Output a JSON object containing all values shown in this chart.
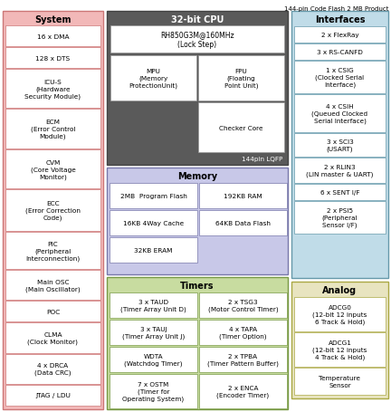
{
  "title": "144-pin Code Flash 2 MB Product",
  "bg_color": "#ffffff",
  "system_color": "#f2b8b8",
  "cpu_color": "#5a5a5a",
  "memory_color": "#c8c8e8",
  "timers_color": "#c8dca0",
  "interfaces_color": "#c0dce8",
  "analog_color": "#e8e4c0",
  "system_items": [
    "16 x DMA",
    "128 x DTS",
    "ICU-S\n(Hardware\nSecurity Module)",
    "ECM\n(Error Control\nModule)",
    "CVM\n(Core Voltage\nMonitor)",
    "ECC\n(Error Correction\nCode)",
    "PIC\n(Peripheral\nInterconnection)",
    "Main OSC\n(Main Oscillator)",
    "POC",
    "CLMA\n(Clock Monitor)",
    "4 x DRCA\n(Data CRC)",
    "JTAG / LDU"
  ],
  "system_ec": "#cc7777",
  "interfaces_items": [
    "2 x FlexRay",
    "3 x RS-CANFD",
    "1 x CSIG\n(Clocked Serial\nInterface)",
    "4 x CSIH\n(Queued Clocked\nSerial Interface)",
    "3 x SCI3\n(USART)",
    "2 x RLIN3\n(LIN master & UART)",
    "6 x SENT I/F",
    "2 x PSI5\n(Peripheral\nSensor I/F)"
  ],
  "interfaces_ec": "#6699aa",
  "analog_items": [
    "ADCG0\n(12-bit 12 inputs\n6 Track & Hold)",
    "ADCG1\n(12-bit 12 inputs\n4 Track & Hold)",
    "Temperature\nSensor"
  ],
  "analog_ec": "#aaa844",
  "memory_ec": "#7777aa",
  "timers_ec": "#779944",
  "cpu_ec": "#444444"
}
